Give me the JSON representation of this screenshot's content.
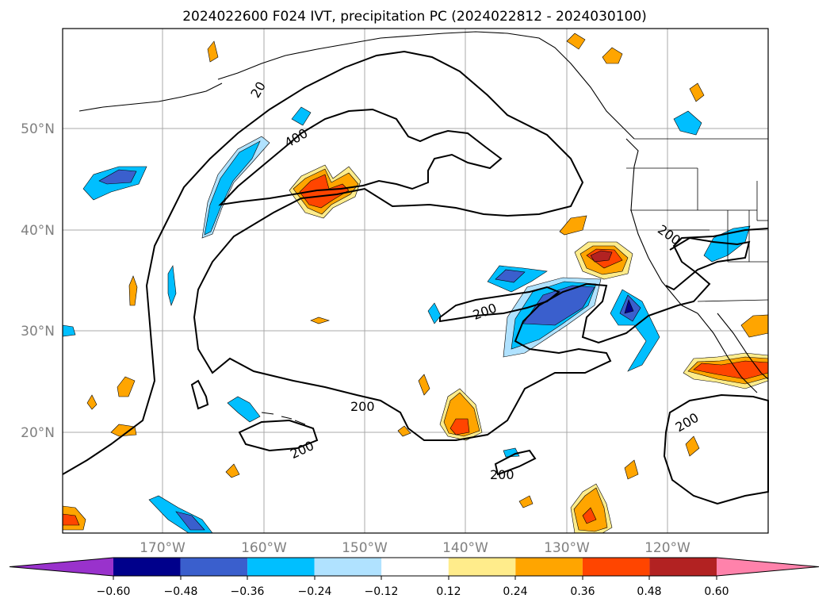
{
  "title": "2024022600 F024 IVT, precipitation PC (2024022812 - 2024030100)",
  "map": {
    "lon_labels": [
      "170°W",
      "160°W",
      "150°W",
      "140°W",
      "130°W",
      "120°W"
    ],
    "lat_labels": [
      "50°N",
      "40°N",
      "30°N",
      "20°N"
    ],
    "contour_labels": [
      "400",
      "200",
      "200",
      "200",
      "200",
      "200",
      "200",
      "20"
    ],
    "colors": {
      "frame": "#000000",
      "grid": "#a9a9a9",
      "axis_label": "#808080",
      "contour": "#000000"
    }
  },
  "colorbar": {
    "tick_labels": [
      "−0.60",
      "−0.48",
      "−0.36",
      "−0.24",
      "−0.12",
      "0.12",
      "0.24",
      "0.36",
      "0.48",
      "0.60"
    ],
    "colors": [
      "#9932cc",
      "#00008b",
      "#3a5fcd",
      "#00bfff",
      "#b0e2ff",
      "#ffffff",
      "#ffec8b",
      "#ffa500",
      "#ff4500",
      "#b22222",
      "#ff82ab"
    ]
  }
}
